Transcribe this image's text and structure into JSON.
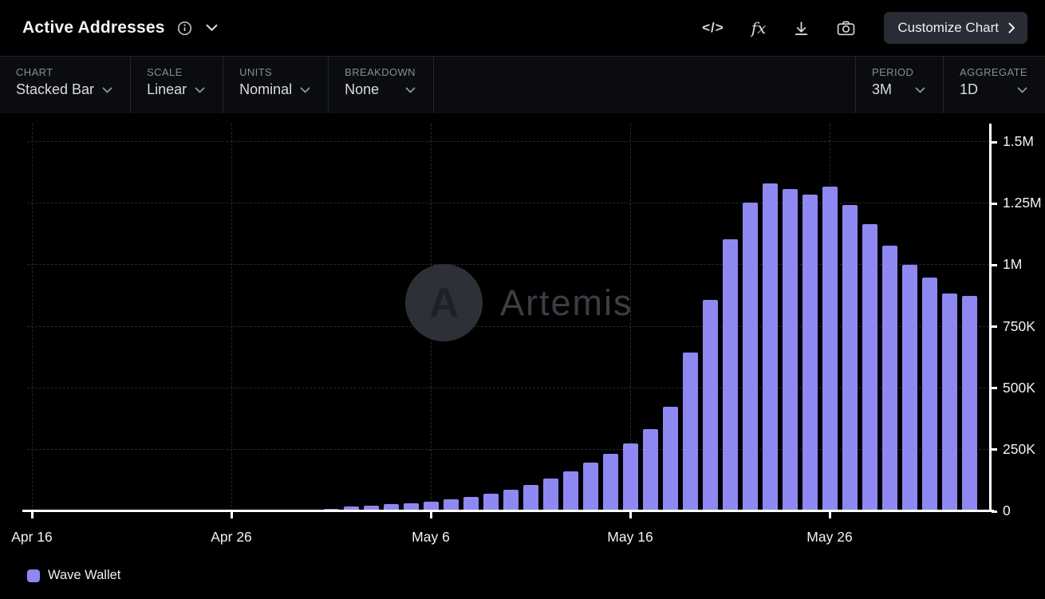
{
  "colors": {
    "background": "#000000",
    "bar": "#8e88f2",
    "grid": "#272a31",
    "axis": "#ffffff",
    "button_bg": "#272c35",
    "watermark": "#3a3e45"
  },
  "header": {
    "title": "Active Addresses",
    "icons": {
      "code_glyph": "</>",
      "fx_glyph": "fx"
    },
    "customize_button": "Customize Chart"
  },
  "toolbar": {
    "controls": [
      {
        "label": "CHART",
        "value": "Stacked Bar"
      },
      {
        "label": "SCALE",
        "value": "Linear"
      },
      {
        "label": "UNITS",
        "value": "Nominal"
      },
      {
        "label": "BREAKDOWN",
        "value": "None"
      }
    ],
    "right_controls": [
      {
        "label": "PERIOD",
        "value": "3M"
      },
      {
        "label": "AGGREGATE",
        "value": "1D"
      }
    ]
  },
  "watermark": {
    "logo_letter": "A",
    "text": "Artemis"
  },
  "legend": [
    {
      "label": "Wave Wallet",
      "color": "#8e88f2"
    }
  ],
  "chart_data": {
    "type": "bar",
    "stacked": true,
    "title": "Active Addresses",
    "xlabel": "",
    "ylabel": "",
    "ylim": [
      0,
      1500000
    ],
    "grid": "dashed",
    "legend_position": "bottom-left",
    "y_axis_side": "right",
    "y_ticks": [
      {
        "label": "0",
        "value": 0
      },
      {
        "label": "250K",
        "value": 250000
      },
      {
        "label": "500K",
        "value": 500000
      },
      {
        "label": "750K",
        "value": 750000
      },
      {
        "label": "1M",
        "value": 1000000
      },
      {
        "label": "1.25M",
        "value": 1250000
      },
      {
        "label": "1.5M",
        "value": 1500000
      }
    ],
    "x_ticks": [
      {
        "label": "Apr 16",
        "day": 0
      },
      {
        "label": "Apr 26",
        "day": 10
      },
      {
        "label": "May 6",
        "day": 20
      },
      {
        "label": "May 16",
        "day": 30
      },
      {
        "label": "May 26",
        "day": 40
      }
    ],
    "first_bar_day": 15,
    "dates": [
      "May 1",
      "May 2",
      "May 3",
      "May 4",
      "May 5",
      "May 6",
      "May 7",
      "May 8",
      "May 9",
      "May 10",
      "May 11",
      "May 12",
      "May 13",
      "May 14",
      "May 15",
      "May 16",
      "May 17",
      "May 18",
      "May 19",
      "May 20",
      "May 21",
      "May 22",
      "May 23",
      "May 24",
      "May 25",
      "May 26",
      "May 27",
      "May 28",
      "May 29",
      "May 30",
      "May 31",
      "Jun 1",
      "Jun 2"
    ],
    "series": [
      {
        "name": "Wave Wallet",
        "color": "#8e88f2",
        "values": [
          10000,
          18000,
          23000,
          28000,
          33000,
          40000,
          48000,
          58000,
          72000,
          88000,
          108000,
          133000,
          163000,
          198000,
          232000,
          275000,
          335000,
          425000,
          645000,
          860000,
          1105000,
          1255000,
          1330000,
          1310000,
          1285000,
          1320000,
          1245000,
          1165000,
          1080000,
          1000000,
          950000,
          885000,
          875000
        ]
      }
    ]
  }
}
